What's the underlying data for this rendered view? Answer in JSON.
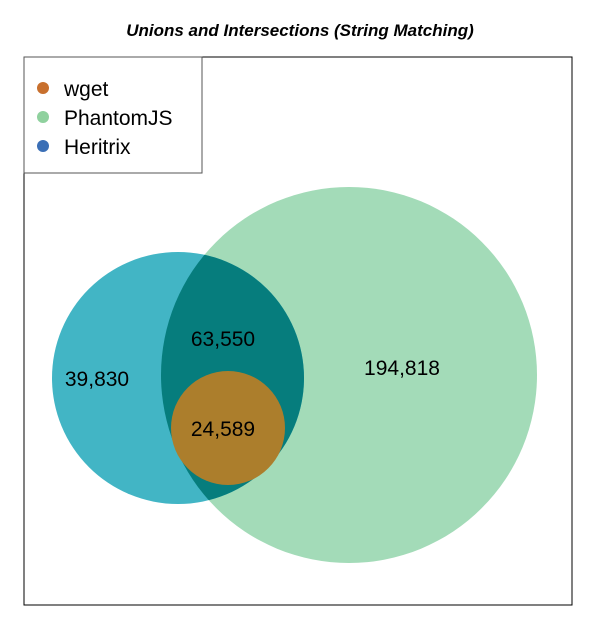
{
  "chart_data": {
    "type": "venn",
    "title": "Unions and Intersections (String Matching)",
    "sets": [
      {
        "name": "wget",
        "color": "#c8702e"
      },
      {
        "name": "PhantomJS",
        "color": "#8fd19e"
      },
      {
        "name": "Heritrix",
        "color": "#3b6fb6"
      }
    ],
    "regions": [
      {
        "sets": [
          "Heritrix"
        ],
        "label": "39,830",
        "value": 39830
      },
      {
        "sets": [
          "Heritrix",
          "PhantomJS"
        ],
        "label": "63,550",
        "value": 63550
      },
      {
        "sets": [
          "wget",
          "Heritrix",
          "PhantomJS"
        ],
        "label": "24,589",
        "value": 24589
      },
      {
        "sets": [
          "PhantomJS"
        ],
        "label": "194,818",
        "value": 194818
      }
    ],
    "fill_colors": {
      "heritrix_only": "#42b5c5",
      "phantom_only": "#a3dbb8",
      "heritrix_phantom": "#067d7d",
      "all_three": "#ac7e2c"
    },
    "legend_position": "top-left"
  }
}
